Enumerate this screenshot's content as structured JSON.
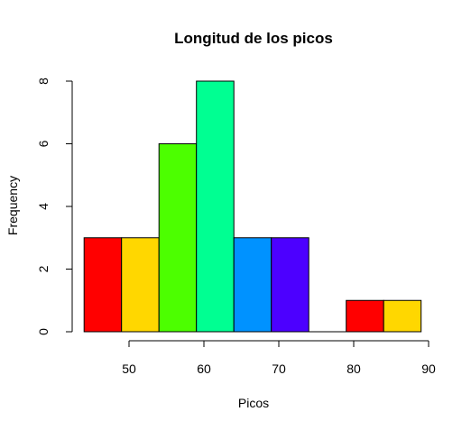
{
  "chart_data": {
    "type": "bar",
    "title": "Longitud de los picos",
    "xlabel": "Picos",
    "ylabel": "Frequency",
    "bin_edges": [
      44,
      49,
      54,
      59,
      64,
      69,
      74,
      79,
      84,
      89
    ],
    "values": [
      3,
      3,
      6,
      8,
      3,
      3,
      0,
      1,
      1
    ],
    "bar_colors": [
      "#FF0000",
      "#FFD700",
      "#4CFF00",
      "#00FF92",
      "#0092FF",
      "#4C00FF",
      "#FF00DB",
      "#FF0000",
      "#FFD700"
    ],
    "x_ticks": [
      50,
      60,
      70,
      80,
      90
    ],
    "y_ticks": [
      0,
      2,
      4,
      6,
      8
    ],
    "xlim": [
      44,
      90
    ],
    "ylim": [
      0,
      8
    ],
    "grid": false,
    "legend": "none"
  }
}
